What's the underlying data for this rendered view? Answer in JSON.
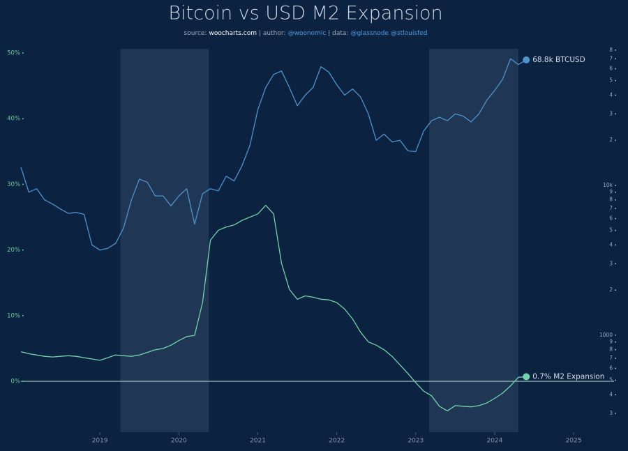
{
  "chart_data": {
    "type": "line",
    "title": "Bitcoin vs USD M2 Expansion",
    "subtitle": [
      "source:",
      "woocharts.com",
      "| author:",
      "@woonomic",
      "| data:",
      "@glassnode @stlouisfed"
    ],
    "x": [
      2018.0,
      2018.1,
      2018.2,
      2018.3,
      2018.4,
      2018.5,
      2018.6,
      2018.7,
      2018.8,
      2018.9,
      2019.0,
      2019.1,
      2019.2,
      2019.3,
      2019.4,
      2019.5,
      2019.6,
      2019.7,
      2019.8,
      2019.9,
      2020.0,
      2020.1,
      2020.2,
      2020.3,
      2020.4,
      2020.5,
      2020.6,
      2020.7,
      2020.8,
      2020.9,
      2021.0,
      2021.1,
      2021.2,
      2021.3,
      2021.4,
      2021.5,
      2021.6,
      2021.7,
      2021.8,
      2021.9,
      2022.0,
      2022.1,
      2022.2,
      2022.3,
      2022.4,
      2022.5,
      2022.6,
      2022.7,
      2022.8,
      2022.9,
      2023.0,
      2023.1,
      2023.2,
      2023.3,
      2023.4,
      2023.5,
      2023.6,
      2023.7,
      2023.8,
      2023.9,
      2024.0,
      2024.1,
      2024.2,
      2024.3,
      2024.4
    ],
    "xlim": [
      2018,
      2025.6
    ],
    "xticks": [
      2019,
      2020,
      2021,
      2022,
      2023,
      2024,
      2025
    ],
    "ylim": [
      -7.75,
      51.7
    ],
    "yticks": [
      {
        "value": 0,
        "label": "0%"
      },
      {
        "value": 10,
        "label": "10%"
      },
      {
        "value": 20,
        "label": "20%"
      },
      {
        "value": 30,
        "label": "30%"
      },
      {
        "value": 40,
        "label": "40%"
      },
      {
        "value": 50,
        "label": "50%"
      }
    ],
    "y2lim": [
      225,
      90800
    ],
    "y2log": true,
    "y2ticks": [
      {
        "value": 80000,
        "label": "8"
      },
      {
        "value": 70000,
        "label": "7"
      },
      {
        "value": 60000,
        "label": "6"
      },
      {
        "value": 50000,
        "label": "5"
      },
      {
        "value": 40000,
        "label": "4"
      },
      {
        "value": 30000,
        "label": "3"
      },
      {
        "value": 20000,
        "label": "2"
      },
      {
        "value": 10000,
        "label": "10k"
      },
      {
        "value": 9000,
        "label": "9"
      },
      {
        "value": 8000,
        "label": "8"
      },
      {
        "value": 7000,
        "label": "7"
      },
      {
        "value": 6000,
        "label": "6"
      },
      {
        "value": 5000,
        "label": "5"
      },
      {
        "value": 4000,
        "label": "4"
      },
      {
        "value": 3000,
        "label": "3"
      },
      {
        "value": 2000,
        "label": "2"
      },
      1000,
      {
        "value": 900,
        "label": "9"
      },
      {
        "value": 800,
        "label": "8"
      },
      {
        "value": 700,
        "label": "7"
      },
      {
        "value": 600,
        "label": "6"
      },
      {
        "value": 500,
        "label": "5"
      },
      {
        "value": 400,
        "label": "4"
      },
      {
        "value": 300,
        "label": "3"
      }
    ],
    "hline": 0,
    "shaded_ranges": [
      [
        2019.26,
        2020.38
      ],
      [
        2023.17,
        2024.3
      ]
    ],
    "series": [
      {
        "name": "BTCUSD",
        "axis": "y2",
        "color": "#4f93cc",
        "end_label": "68.8k BTCUSD",
        "values": [
          13200,
          9000,
          9500,
          8000,
          7500,
          6950,
          6500,
          6600,
          6400,
          4000,
          3700,
          3800,
          4100,
          5200,
          8000,
          11000,
          10500,
          8500,
          8500,
          7300,
          8500,
          9500,
          5500,
          8800,
          9500,
          9200,
          11500,
          10700,
          13500,
          18500,
          32000,
          45000,
          55000,
          58000,
          45000,
          34000,
          40000,
          45000,
          62000,
          57000,
          47000,
          40000,
          44000,
          39000,
          30000,
          20000,
          22000,
          19500,
          20000,
          17000,
          16800,
          23000,
          27000,
          28500,
          27000,
          30000,
          29000,
          26500,
          30000,
          37000,
          43000,
          51000,
          70000,
          64000,
          68800
        ]
      },
      {
        "name": "M2 Expansion",
        "color": "#72d3aa",
        "end_label": "0.7% M2 Expansion",
        "values": [
          4.5,
          4.2,
          4.0,
          3.8,
          3.7,
          3.8,
          3.9,
          3.8,
          3.6,
          3.4,
          3.2,
          3.6,
          4.0,
          3.9,
          3.8,
          4.0,
          4.4,
          4.8,
          5.0,
          5.5,
          6.2,
          6.8,
          7.0,
          12,
          21.5,
          23.0,
          23.5,
          23.8,
          24.5,
          25.0,
          25.5,
          26.8,
          25.5,
          18,
          14,
          12.5,
          13.0,
          12.8,
          12.5,
          12.4,
          12.0,
          11.0,
          9.5,
          7.5,
          6.0,
          5.5,
          4.8,
          3.8,
          2.5,
          1.2,
          -0.2,
          -1.5,
          -2.2,
          -3.8,
          -4.5,
          -3.7,
          -3.8,
          -3.9,
          -3.7,
          -3.3,
          -2.6,
          -1.8,
          -0.7,
          0.6,
          0.7
        ]
      }
    ]
  }
}
